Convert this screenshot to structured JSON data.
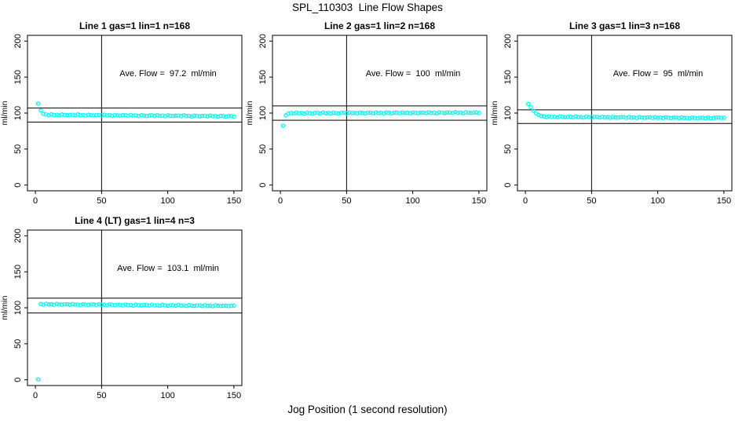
{
  "title": "SPL_110303  Line Flow Shapes",
  "xlabel": "Jog Position (1 second resolution)",
  "colors": {
    "points": "#00ffff",
    "axis": "#000000",
    "background": "#ffffff"
  },
  "chart_data": [
    {
      "type": "scatter",
      "title": "Line 1 gas=1 lin=1 n=168",
      "annotation": "Ave. Flow =  97.2  ml/min",
      "ave_flow": 97.2,
      "ylabel": "ml/min",
      "xlim": [
        -6,
        156
      ],
      "ylim": [
        -8,
        208
      ],
      "xticks": [
        0,
        50,
        100,
        150
      ],
      "yticks": [
        0,
        50,
        100,
        150,
        200
      ],
      "vline": 50,
      "hlines": [
        106.9,
        87.5
      ],
      "x": [
        2,
        4,
        6,
        8,
        10,
        12,
        14,
        16,
        18,
        20,
        22,
        24,
        26,
        28,
        30,
        32,
        34,
        36,
        38,
        40,
        42,
        44,
        46,
        48,
        50,
        52,
        54,
        56,
        58,
        60,
        62,
        64,
        66,
        68,
        70,
        72,
        74,
        76,
        78,
        80,
        82,
        84,
        86,
        88,
        90,
        92,
        94,
        96,
        98,
        100,
        102,
        104,
        106,
        108,
        110,
        112,
        114,
        116,
        118,
        120,
        122,
        124,
        126,
        128,
        130,
        132,
        134,
        136,
        138,
        140,
        142,
        144,
        146,
        148,
        150
      ],
      "y": [
        113.2,
        103.6,
        99.0,
        98.0,
        97.1,
        98.3,
        97.3,
        97.6,
        96.8,
        98.0,
        97.4,
        97.0,
        97.6,
        97.7,
        96.8,
        98.0,
        97.0,
        97.3,
        96.5,
        97.7,
        97.1,
        96.7,
        97.3,
        97.4,
        96.5,
        97.7,
        96.7,
        97.0,
        96.2,
        97.4,
        96.8,
        96.4,
        97.0,
        97.1,
        96.2,
        97.4,
        96.4,
        96.7,
        95.9,
        97.1,
        96.5,
        96.1,
        96.7,
        96.8,
        95.9,
        97.1,
        96.1,
        96.4,
        95.6,
        96.8,
        96.2,
        95.8,
        96.4,
        96.5,
        95.6,
        96.8,
        95.8,
        96.1,
        95.3,
        96.5,
        95.9,
        95.5,
        96.1,
        96.2,
        95.3,
        96.5,
        95.5,
        95.8,
        95.0,
        96.2,
        95.6,
        95.2,
        95.8,
        95.9,
        95.0
      ]
    },
    {
      "type": "scatter",
      "title": "Line 2 gas=1 lin=2 n=168",
      "annotation": "Ave. Flow =  100  ml/min",
      "ave_flow": 100,
      "ylabel": "ml/min",
      "xlim": [
        -6,
        156
      ],
      "ylim": [
        -8,
        208
      ],
      "xticks": [
        0,
        50,
        100,
        150
      ],
      "yticks": [
        0,
        50,
        100,
        150,
        200
      ],
      "vline": 50,
      "hlines": [
        110,
        90
      ],
      "x": [
        2,
        4,
        6,
        8,
        10,
        12,
        14,
        16,
        18,
        20,
        22,
        24,
        26,
        28,
        30,
        32,
        34,
        36,
        38,
        40,
        42,
        44,
        46,
        48,
        50,
        52,
        54,
        56,
        58,
        60,
        62,
        64,
        66,
        68,
        70,
        72,
        74,
        76,
        78,
        80,
        82,
        84,
        86,
        88,
        90,
        92,
        94,
        96,
        98,
        100,
        102,
        104,
        106,
        108,
        110,
        112,
        114,
        116,
        118,
        120,
        122,
        124,
        126,
        128,
        130,
        132,
        134,
        136,
        138,
        140,
        142,
        144,
        146,
        148,
        150
      ],
      "y": [
        82.3,
        96.8,
        99.2,
        100.2,
        99.4,
        100.6,
        99.7,
        100.1,
        99.2,
        100.5,
        99.9,
        99.5,
        100.2,
        100.3,
        99.5,
        100.7,
        99.8,
        100.2,
        99.3,
        100.6,
        100.0,
        99.6,
        100.3,
        100.4,
        99.6,
        100.8,
        99.9,
        100.3,
        99.4,
        100.7,
        100.1,
        99.7,
        100.4,
        100.5,
        99.7,
        100.9,
        100.0,
        100.4,
        99.5,
        100.8,
        100.2,
        99.8,
        100.5,
        100.6,
        99.8,
        101.0,
        100.1,
        100.5,
        99.6,
        100.9,
        100.3,
        99.9,
        100.6,
        100.7,
        99.9,
        101.1,
        100.2,
        100.6,
        99.7,
        101.0,
        100.4,
        100.0,
        100.7,
        100.8,
        100.0,
        101.2,
        100.3,
        100.7,
        99.8,
        101.1,
        100.5,
        100.1,
        100.8,
        100.9,
        100.1
      ]
    },
    {
      "type": "scatter",
      "title": "Line 3 gas=1 lin=3 n=168",
      "annotation": "Ave. Flow =  95  ml/min",
      "ave_flow": 95,
      "ylabel": "ml/min",
      "xlim": [
        -6,
        156
      ],
      "ylim": [
        -8,
        208
      ],
      "xticks": [
        0,
        50,
        100,
        150
      ],
      "yticks": [
        0,
        50,
        100,
        150,
        200
      ],
      "vline": 50,
      "hlines": [
        104.5,
        85.5
      ],
      "x": [
        2,
        4,
        6,
        8,
        10,
        12,
        14,
        16,
        18,
        20,
        22,
        24,
        26,
        28,
        30,
        32,
        34,
        36,
        38,
        40,
        42,
        44,
        46,
        48,
        50,
        52,
        54,
        56,
        58,
        60,
        62,
        64,
        66,
        68,
        70,
        72,
        74,
        76,
        78,
        80,
        82,
        84,
        86,
        88,
        90,
        92,
        94,
        96,
        98,
        100,
        102,
        104,
        106,
        108,
        110,
        112,
        114,
        116,
        118,
        120,
        122,
        124,
        126,
        128,
        130,
        132,
        134,
        136,
        138,
        140,
        142,
        144,
        146,
        148,
        150
      ],
      "y": [
        112.6,
        108.1,
        103.2,
        99.6,
        97.2,
        95.9,
        95.3,
        94.4,
        95.5,
        94.6,
        94.9,
        94.1,
        95.3,
        94.7,
        94.3,
        94.9,
        95.0,
        94.1,
        95.2,
        94.3,
        94.6,
        93.8,
        95.0,
        94.4,
        94.0,
        94.6,
        94.7,
        93.8,
        94.9,
        94.0,
        94.3,
        93.5,
        94.7,
        94.1,
        93.7,
        94.3,
        94.4,
        93.5,
        94.6,
        93.7,
        94.0,
        93.2,
        94.4,
        93.8,
        93.4,
        94.0,
        94.1,
        93.2,
        94.3,
        93.4,
        93.7,
        92.9,
        94.1,
        93.5,
        93.1,
        93.7,
        93.8,
        92.9,
        94.0,
        93.1,
        93.4,
        92.6,
        93.8,
        93.2,
        92.8,
        93.4,
        93.5,
        92.6,
        93.7,
        92.8,
        93.1,
        93.6,
        93.9,
        93.3,
        93.5
      ]
    },
    {
      "type": "scatter",
      "title": "Line 4 (LT) gas=1 lin=4 n=3",
      "annotation": "Ave. Flow =  103.1  ml/min",
      "ave_flow": 103.1,
      "ylabel": "ml/min",
      "xlim": [
        -6,
        156
      ],
      "ylim": [
        -8,
        208
      ],
      "xticks": [
        0,
        50,
        100,
        150
      ],
      "yticks": [
        0,
        50,
        100,
        150,
        200
      ],
      "vline": 50,
      "hlines": [
        113.4,
        92.8
      ],
      "x": [
        2,
        4,
        6,
        8,
        10,
        12,
        14,
        16,
        18,
        20,
        22,
        24,
        26,
        28,
        30,
        32,
        34,
        36,
        38,
        40,
        42,
        44,
        46,
        48,
        50,
        52,
        54,
        56,
        58,
        60,
        62,
        64,
        66,
        68,
        70,
        72,
        74,
        76,
        78,
        80,
        82,
        84,
        86,
        88,
        90,
        92,
        94,
        96,
        98,
        100,
        102,
        104,
        106,
        108,
        110,
        112,
        114,
        116,
        118,
        120,
        122,
        124,
        126,
        128,
        130,
        132,
        134,
        136,
        138,
        140,
        142,
        144,
        146,
        148,
        150
      ],
      "y": [
        0.4,
        105.3,
        104.4,
        105.6,
        104.6,
        104.9,
        104.1,
        105.3,
        104.7,
        104.2,
        104.8,
        104.9,
        104.0,
        105.2,
        104.2,
        104.5,
        103.7,
        104.9,
        104.3,
        103.9,
        104.5,
        104.6,
        103.7,
        104.8,
        103.9,
        104.2,
        103.4,
        104.6,
        104.0,
        103.6,
        104.2,
        104.2,
        103.4,
        104.5,
        103.6,
        103.9,
        103.1,
        104.3,
        103.7,
        103.3,
        103.9,
        103.9,
        103.1,
        104.2,
        103.3,
        103.6,
        102.8,
        104.0,
        103.4,
        103.0,
        103.6,
        103.6,
        102.8,
        103.9,
        103.0,
        103.3,
        102.5,
        103.7,
        103.1,
        102.7,
        103.3,
        103.3,
        102.5,
        103.6,
        102.7,
        103.0,
        102.2,
        103.4,
        102.8,
        102.4,
        103.0,
        103.1,
        102.3,
        102.9,
        103.0
      ]
    }
  ]
}
